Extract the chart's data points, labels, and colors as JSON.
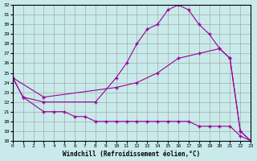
{
  "xlabel": "Windchill (Refroidissement éolien,°C)",
  "xlim": [
    0,
    23
  ],
  "ylim": [
    18,
    32
  ],
  "xticks": [
    0,
    1,
    2,
    3,
    4,
    5,
    6,
    7,
    8,
    9,
    10,
    11,
    12,
    13,
    14,
    15,
    16,
    17,
    18,
    19,
    20,
    21,
    22,
    23
  ],
  "yticks": [
    18,
    19,
    20,
    21,
    22,
    23,
    24,
    25,
    26,
    27,
    28,
    29,
    30,
    31,
    32
  ],
  "bg_color": "#c8eaea",
  "line_color": "#990099",
  "grid_color": "#aaaaaa",
  "curve_arch": {
    "x": [
      0,
      1,
      3,
      8,
      10,
      11,
      12,
      13,
      14,
      15,
      16,
      17,
      18,
      19,
      20,
      21,
      22,
      23
    ],
    "y": [
      24.5,
      22.5,
      22.0,
      22.0,
      24.5,
      26.0,
      28.0,
      29.5,
      30.0,
      31.5,
      32.0,
      31.5,
      30.0,
      29.0,
      27.5,
      26.5,
      19.0,
      18.0
    ]
  },
  "curve_diag": {
    "x": [
      0,
      3,
      10,
      12,
      14,
      16,
      18,
      20,
      21,
      22,
      23
    ],
    "y": [
      24.5,
      22.5,
      23.5,
      24.0,
      25.0,
      26.5,
      27.0,
      27.5,
      26.5,
      19.0,
      18.0
    ]
  },
  "curve_low": {
    "x": [
      0,
      1,
      3,
      4,
      5,
      6,
      7,
      8,
      9,
      10,
      11,
      12,
      13,
      14,
      15,
      16,
      17,
      18,
      19,
      20,
      21,
      22,
      23
    ],
    "y": [
      24.5,
      22.5,
      21.0,
      21.0,
      21.0,
      20.5,
      20.5,
      20.0,
      20.0,
      20.0,
      20.0,
      20.0,
      20.0,
      20.0,
      20.0,
      20.0,
      20.0,
      19.5,
      19.5,
      19.5,
      19.5,
      18.5,
      18.0
    ]
  }
}
